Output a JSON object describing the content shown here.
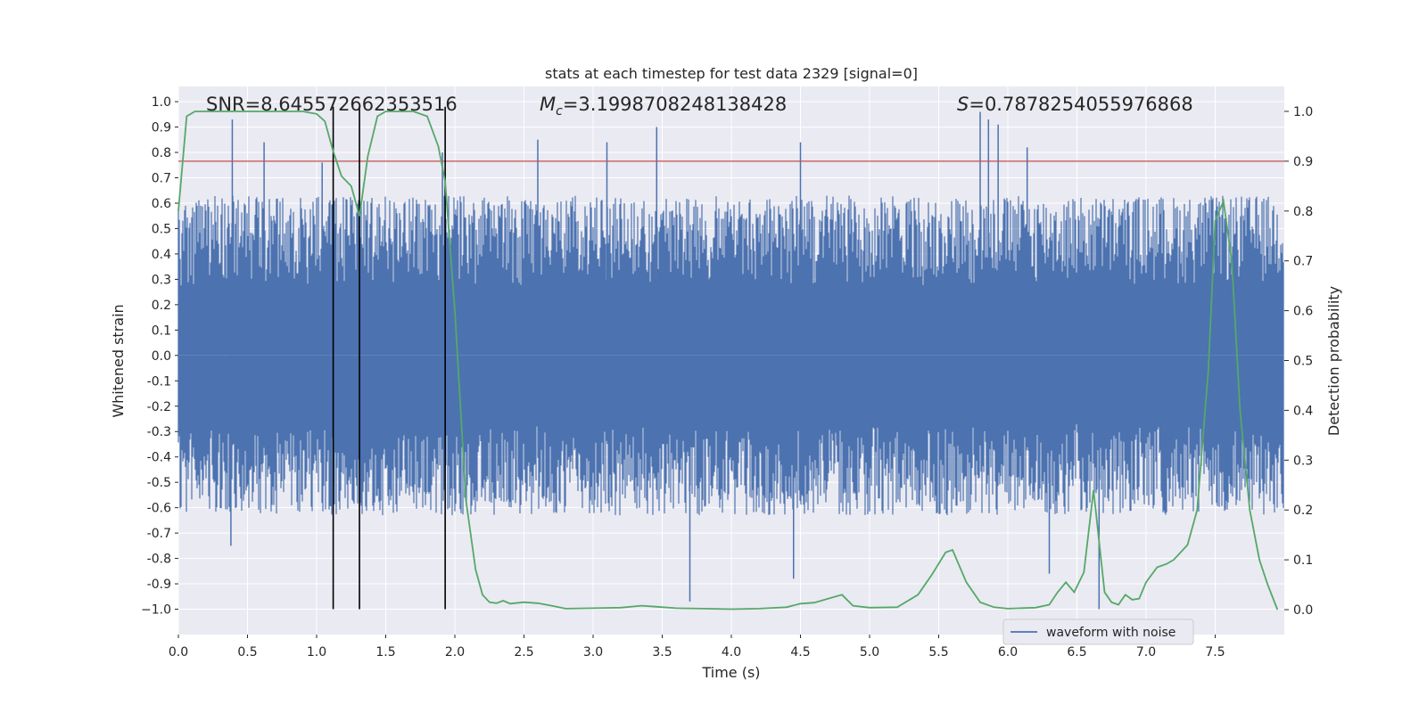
{
  "chart_data": {
    "type": "line",
    "title": "stats at each timestep for test data 2329 [signal=0]",
    "xlabel": "Time (s)",
    "ylabel_left": "Whitened strain",
    "ylabel_right": "Detection probability",
    "xlim": [
      0.0,
      8.0
    ],
    "ylim_left": [
      -1.1,
      1.06
    ],
    "ylim_right": [
      -0.05,
      1.05
    ],
    "xticks": [
      "0.0",
      "0.5",
      "1.0",
      "1.5",
      "2.0",
      "2.5",
      "3.0",
      "3.5",
      "4.0",
      "4.5",
      "5.0",
      "5.5",
      "6.0",
      "6.5",
      "7.0",
      "7.5"
    ],
    "yticks_left": [
      "1.0",
      "0.9",
      "0.8",
      "0.7",
      "0.6",
      "0.5",
      "0.4",
      "0.3",
      "0.2",
      "0.1",
      "0.0",
      "-0.1",
      "-0.2",
      "-0.3",
      "-0.4",
      "-0.5",
      "-0.6",
      "-0.7",
      "-0.8",
      "-0.9",
      "−1.0"
    ],
    "yticks_right": [
      "1.0",
      "0.9",
      "0.8",
      "0.7",
      "0.6",
      "0.5",
      "0.4",
      "0.3",
      "0.2",
      "0.1",
      "0.0"
    ],
    "grid": true,
    "legend_placement": "lower-right",
    "annotations": {
      "snr": "SNR=8.645572662353516",
      "mc_symbol": "M",
      "mc_sub": "c",
      "mc_value": "=3.1998708248138428",
      "s_symbol": "S",
      "s_value": "=0.7878254055976868"
    },
    "threshold": {
      "axis": "right",
      "value": 0.9
    },
    "vlines_x": [
      1.12,
      1.31,
      1.93
    ],
    "series": [
      {
        "name": "waveform with noise",
        "axis": "left",
        "kind": "noise",
        "envelope": {
          "typical_abs": 0.45,
          "max": 0.96,
          "min": -1.0
        },
        "notable_peaks": [
          {
            "x": 0.39,
            "y": 0.93
          },
          {
            "x": 0.62,
            "y": 0.84
          },
          {
            "x": 1.04,
            "y": 0.76
          },
          {
            "x": 1.91,
            "y": 0.8
          },
          {
            "x": 2.6,
            "y": 0.85
          },
          {
            "x": 3.1,
            "y": 0.84
          },
          {
            "x": 3.46,
            "y": 0.9
          },
          {
            "x": 4.5,
            "y": 0.84
          },
          {
            "x": 5.8,
            "y": 0.96
          },
          {
            "x": 5.86,
            "y": 0.93
          },
          {
            "x": 5.93,
            "y": 0.91
          },
          {
            "x": 6.14,
            "y": 0.82
          },
          {
            "x": 3.7,
            "y": -0.97
          },
          {
            "x": 4.45,
            "y": -0.88
          },
          {
            "x": 6.66,
            "y": -1.0
          },
          {
            "x": 0.38,
            "y": -0.75
          },
          {
            "x": 6.3,
            "y": -0.86
          }
        ]
      },
      {
        "name": "",
        "axis": "right",
        "kind": "line",
        "color": "#55a868",
        "x": [
          0.0,
          0.06,
          0.12,
          0.2,
          0.3,
          0.5,
          0.7,
          0.9,
          1.0,
          1.06,
          1.12,
          1.18,
          1.25,
          1.31,
          1.37,
          1.44,
          1.5,
          1.6,
          1.7,
          1.8,
          1.88,
          1.93,
          2.0,
          2.08,
          2.15,
          2.2,
          2.25,
          2.3,
          2.35,
          2.4,
          2.5,
          2.6,
          2.7,
          2.8,
          3.0,
          3.2,
          3.35,
          3.45,
          3.6,
          3.8,
          4.0,
          4.2,
          4.4,
          4.5,
          4.6,
          4.8,
          4.88,
          5.0,
          5.2,
          5.35,
          5.45,
          5.55,
          5.6,
          5.7,
          5.8,
          5.9,
          6.0,
          6.2,
          6.3,
          6.36,
          6.42,
          6.48,
          6.55,
          6.62,
          6.7,
          6.75,
          6.8,
          6.85,
          6.9,
          6.95,
          7.0,
          7.08,
          7.15,
          7.2,
          7.3,
          7.37,
          7.45,
          7.5,
          7.56,
          7.62,
          7.68,
          7.75,
          7.82,
          7.88,
          7.95
        ],
        "y": [
          0.8,
          0.99,
          1.0,
          1.0,
          1.0,
          1.0,
          1.0,
          1.0,
          0.995,
          0.98,
          0.92,
          0.87,
          0.85,
          0.79,
          0.91,
          0.99,
          1.0,
          1.0,
          1.0,
          0.99,
          0.93,
          0.86,
          0.6,
          0.22,
          0.08,
          0.03,
          0.015,
          0.013,
          0.018,
          0.012,
          0.015,
          0.013,
          0.008,
          0.002,
          0.003,
          0.004,
          0.008,
          0.006,
          0.003,
          0.002,
          0.001,
          0.002,
          0.005,
          0.012,
          0.014,
          0.03,
          0.008,
          0.004,
          0.005,
          0.03,
          0.07,
          0.115,
          0.12,
          0.055,
          0.015,
          0.005,
          0.002,
          0.004,
          0.01,
          0.035,
          0.055,
          0.035,
          0.075,
          0.24,
          0.035,
          0.015,
          0.01,
          0.03,
          0.02,
          0.022,
          0.055,
          0.085,
          0.092,
          0.1,
          0.13,
          0.2,
          0.48,
          0.78,
          0.82,
          0.7,
          0.4,
          0.2,
          0.1,
          0.05,
          0.0
        ]
      }
    ],
    "colors": {
      "background": "#eaeaf2",
      "grid": "#ffffff",
      "noise": "#4c72b0",
      "probability": "#55a868",
      "threshold": "#c44e52",
      "vline": "#000000"
    }
  }
}
